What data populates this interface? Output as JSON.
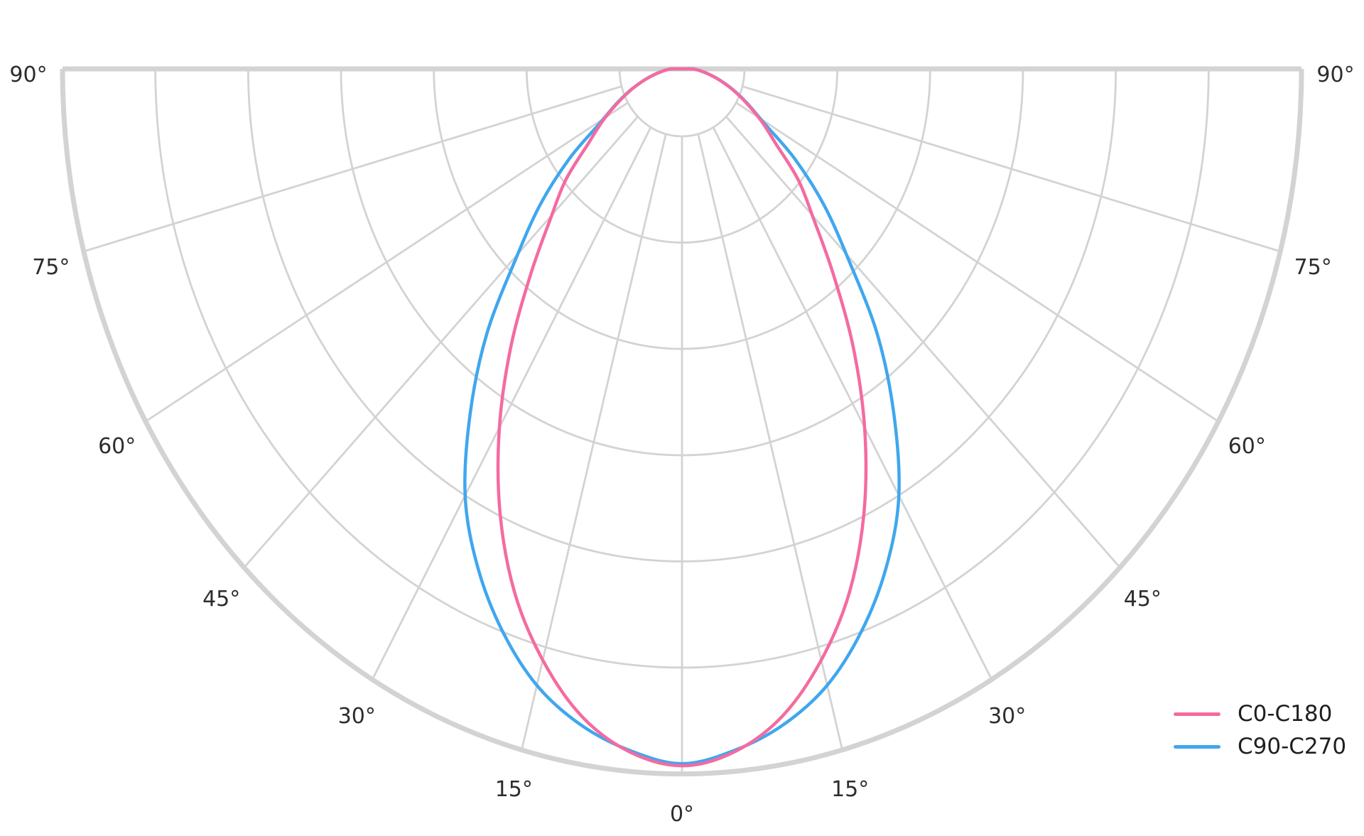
{
  "page": {
    "background_color": "#ffffff",
    "title": ""
  },
  "legend": {
    "position": "bottom-right",
    "items": [
      {
        "label": "C0-C180",
        "color": "#f46ba0"
      },
      {
        "label": "C90-C270",
        "color": "#3fa7ee"
      }
    ]
  },
  "chart_data": {
    "type": "line",
    "projection": "semicircular-polar",
    "description": "Photometric luminous intensity distribution polar diagram, 0° pointing down, angular span -90° to +90°",
    "angle_unit": "degrees",
    "angle_range": [
      -90,
      90
    ],
    "angle_tick_step": 15,
    "angle_ticks_deg": [
      -90,
      -75,
      -60,
      -45,
      -30,
      -15,
      0,
      15,
      30,
      45,
      60,
      75,
      90
    ],
    "angle_tick_labels": [
      "90°",
      "75°",
      "60°",
      "45°",
      "30°",
      "15°",
      "0°",
      "15°",
      "30°",
      "45°",
      "60°",
      "75°",
      "90°"
    ],
    "radial_axis": {
      "min": 0,
      "max": 1,
      "rings": 6,
      "labels_shown": false
    },
    "grid": {
      "shown": true,
      "color": "#d3d3d3",
      "outline_color": "#d3d3d3",
      "label_color": "#2d2d2d"
    },
    "series": [
      {
        "name": "C0-C180",
        "color": "#f46ba0",
        "symmetric": true,
        "angles_deg": [
          0,
          5,
          10,
          15,
          20,
          25,
          30,
          35,
          40,
          45,
          50,
          55,
          60,
          65,
          70,
          75,
          80,
          85,
          90
        ],
        "values": [
          0.988,
          0.972,
          0.932,
          0.868,
          0.79,
          0.695,
          0.59,
          0.482,
          0.38,
          0.3,
          0.245,
          0.185,
          0.148,
          0.115,
          0.088,
          0.064,
          0.044,
          0.029,
          0.018
        ]
      },
      {
        "name": "C90-C270",
        "color": "#3fa7ee",
        "symmetric": true,
        "angles_deg": [
          0,
          5,
          10,
          15,
          20,
          25,
          30,
          35,
          40,
          45,
          50,
          55,
          60,
          65,
          70,
          75,
          80,
          85,
          90
        ],
        "values": [
          0.985,
          0.97,
          0.944,
          0.905,
          0.848,
          0.78,
          0.7,
          0.596,
          0.49,
          0.378,
          0.298,
          0.222,
          0.152,
          0.117,
          0.089,
          0.065,
          0.045,
          0.03,
          0.018
        ]
      }
    ]
  }
}
